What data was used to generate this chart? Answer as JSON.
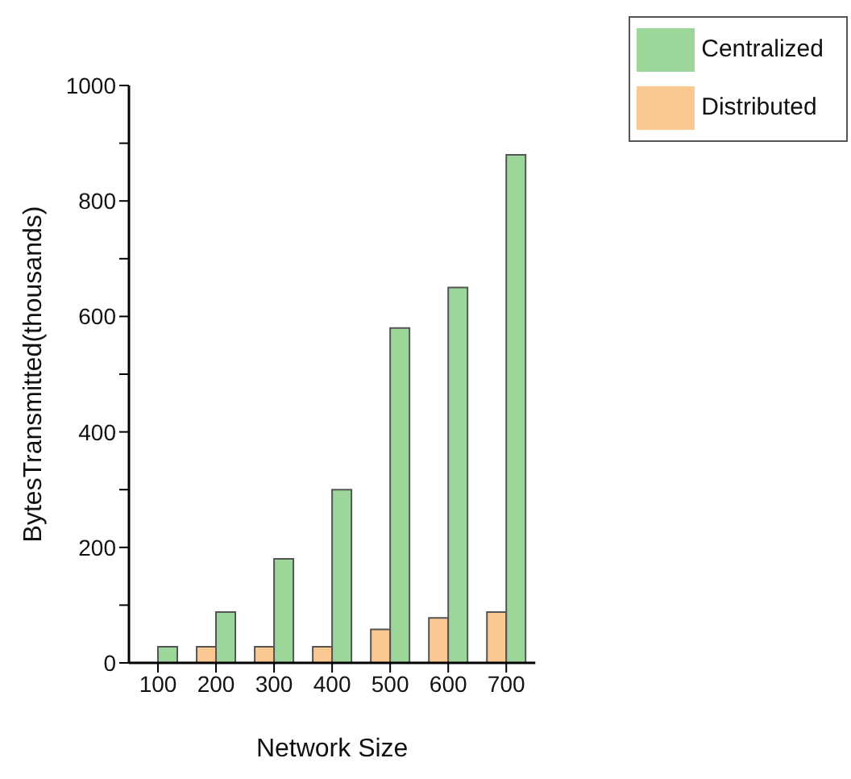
{
  "chart_data": {
    "type": "bar",
    "xlabel": "Network Size",
    "ylabel": "BytesTransmitted(thousands)",
    "categories": [
      "100",
      "200",
      "300",
      "400",
      "500",
      "600",
      "700"
    ],
    "series": [
      {
        "name": "Distributed",
        "color": "#fbc891",
        "values": [
          0,
          28,
          28,
          28,
          58,
          78,
          88
        ]
      },
      {
        "name": "Centralized",
        "color": "#9dd69b",
        "values": [
          28,
          88,
          180,
          300,
          580,
          650,
          880
        ]
      }
    ],
    "ylim": [
      0,
      1000
    ],
    "yticks": [
      0,
      {
        "value": 100,
        "label": null
      },
      200,
      {
        "value": 300,
        "label": null
      },
      400,
      {
        "value": 500,
        "label": null
      },
      600,
      {
        "value": 700,
        "label": null
      },
      800,
      {
        "value": 900,
        "label": null
      },
      1000
    ],
    "grid": false,
    "legend": "top right"
  }
}
